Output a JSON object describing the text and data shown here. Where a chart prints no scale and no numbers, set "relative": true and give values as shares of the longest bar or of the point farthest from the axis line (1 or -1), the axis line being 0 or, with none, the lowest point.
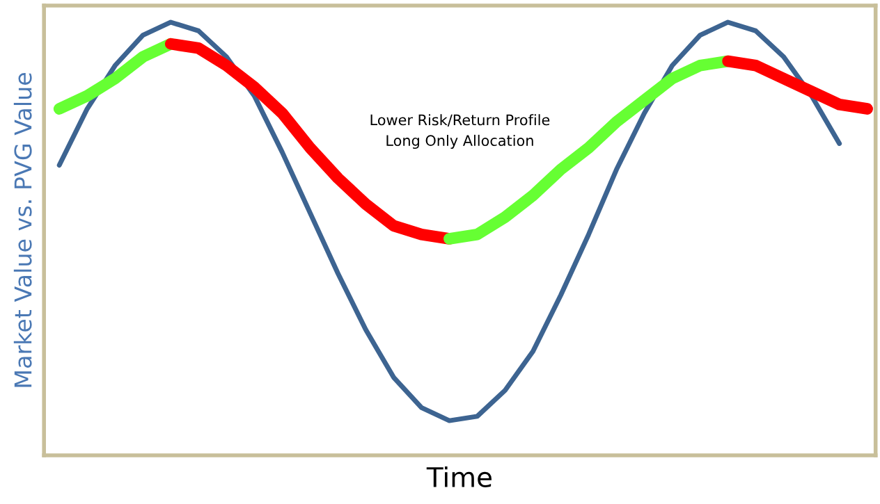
{
  "chart_data": {
    "type": "line",
    "relative": true,
    "xlabel": "Time",
    "ylabel": "Market Value vs. PVG Value",
    "annotations": [
      "Lower Risk/Return Profile\nLong Only Allocation"
    ],
    "categories": [
      null,
      null,
      null,
      null,
      null,
      null,
      null,
      null,
      null,
      null,
      null,
      null,
      null,
      null,
      null,
      null,
      null,
      null,
      null,
      null,
      null,
      null,
      null,
      null,
      null,
      null,
      null,
      null,
      null,
      null
    ],
    "grid": false,
    "legend": false,
    "series": [
      {
        "color": "#3d6491",
        "values": [
          0.67,
          0.8,
          0.9,
          0.97,
          1.0,
          0.98,
          0.92,
          0.83,
          0.7,
          0.56,
          0.42,
          0.29,
          0.18,
          0.11,
          0.08,
          0.09,
          0.15,
          0.24,
          0.37,
          0.51,
          0.66,
          0.79,
          0.9,
          0.97,
          1.0,
          0.98,
          0.92,
          0.83,
          0.72,
          null
        ]
      },
      {
        "color": "#66ff33",
        "values": [
          0.8,
          0.83,
          0.87,
          0.92,
          0.95,
          null,
          null,
          null,
          null,
          null,
          null,
          null,
          null,
          null,
          null,
          null,
          null,
          null,
          null,
          null,
          null,
          null,
          null,
          null,
          null,
          null,
          null,
          null,
          null,
          null
        ]
      },
      {
        "color": "#ff0000",
        "values": [
          null,
          null,
          null,
          null,
          0.95,
          0.94,
          0.9,
          0.85,
          0.79,
          0.71,
          0.64,
          0.58,
          0.53,
          0.51,
          0.5,
          null,
          null,
          null,
          null,
          null,
          null,
          null,
          null,
          null,
          null,
          null,
          null,
          null,
          null,
          null
        ]
      },
      {
        "color": "#66ff33",
        "values": [
          null,
          null,
          null,
          null,
          null,
          null,
          null,
          null,
          null,
          null,
          null,
          null,
          null,
          null,
          0.5,
          0.51,
          0.55,
          0.6,
          0.66,
          0.71,
          0.77,
          0.82,
          0.87,
          0.9,
          0.91,
          null,
          null,
          null,
          null,
          null
        ]
      },
      {
        "color": "#ff0000",
        "values": [
          null,
          null,
          null,
          null,
          null,
          null,
          null,
          null,
          null,
          null,
          null,
          null,
          null,
          null,
          null,
          null,
          null,
          null,
          null,
          null,
          null,
          null,
          null,
          null,
          0.91,
          0.9,
          0.87,
          0.84,
          0.81,
          0.8
        ]
      }
    ]
  }
}
